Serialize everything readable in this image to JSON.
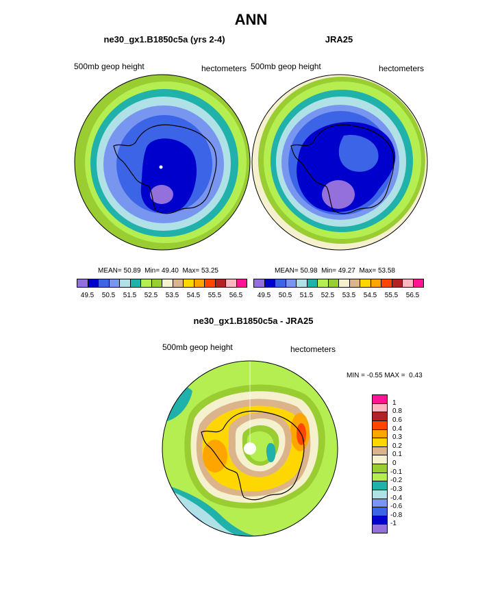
{
  "page_title": "ANN",
  "colors": {
    "levels": [
      "#9370db",
      "#0000cd",
      "#3c64e6",
      "#7896f0",
      "#afe1e6",
      "#20b2aa",
      "#b4ee50",
      "#9acd32",
      "#f5f0cd",
      "#dcb48c",
      "#ffd700",
      "#ffa500",
      "#ff4500",
      "#b22222",
      "#ffb6c1",
      "#ff1493"
    ],
    "diff_levels": [
      "#9370db",
      "#0000cd",
      "#3c64e6",
      "#7896f0",
      "#afe1e6",
      "#20b2aa",
      "#b4ee50",
      "#9acd32",
      "#f5f0cd",
      "#dcb48c",
      "#ffd700",
      "#ffa500",
      "#ff4500",
      "#b22222",
      "#ffb6c1",
      "#ff1493"
    ]
  },
  "chart_data": [
    {
      "type": "heatmap",
      "projection": "polar-south",
      "title": "ne30_gx1.B1850c5a (yrs 2-4)",
      "left_label": "500mb geop height",
      "right_label": "hectometers",
      "stats": {
        "mean_label": "MEAN=",
        "mean": "50.89",
        "min_label": "Min=",
        "min": "49.40",
        "max_label": "Max=",
        "max": "53.25"
      },
      "colorbar_ticks": [
        "49.5",
        "50.5",
        "51.5",
        "52.5",
        "53.5",
        "54.5",
        "55.5",
        "56.5"
      ],
      "rings": [
        {
          "value": 53.25,
          "color_index": 6
        },
        {
          "value": 52.75,
          "color_index": 7
        },
        {
          "value": 52.25,
          "color_index": 5
        },
        {
          "value": 51.75,
          "color_index": 4
        },
        {
          "value": 51.25,
          "color_index": 3
        },
        {
          "value": 50.75,
          "color_index": 2
        },
        {
          "value": 50.25,
          "color_index": 1
        },
        {
          "value": 49.6,
          "color_index": 0
        }
      ]
    },
    {
      "type": "heatmap",
      "projection": "polar-south",
      "title": "JRA25",
      "left_label": "500mb geop height",
      "right_label": "hectometers",
      "stats": {
        "mean_label": "MEAN=",
        "mean": "50.98",
        "min_label": "Min=",
        "min": "49.27",
        "max_label": "Max=",
        "max": "53.58"
      },
      "colorbar_ticks": [
        "49.5",
        "50.5",
        "51.5",
        "52.5",
        "53.5",
        "54.5",
        "55.5",
        "56.5"
      ],
      "rings": [
        {
          "value": 53.58,
          "color_index": 8
        },
        {
          "value": 53.25,
          "color_index": 6
        },
        {
          "value": 52.75,
          "color_index": 7
        },
        {
          "value": 52.25,
          "color_index": 5
        },
        {
          "value": 51.75,
          "color_index": 4
        },
        {
          "value": 51.25,
          "color_index": 3
        },
        {
          "value": 50.75,
          "color_index": 2
        },
        {
          "value": 50.25,
          "color_index": 1
        },
        {
          "value": 49.5,
          "color_index": 0
        }
      ]
    },
    {
      "type": "heatmap",
      "projection": "polar-south",
      "title": "ne30_gx1.B1850c5a - JRA25",
      "left_label": "500mb geop height",
      "right_label": "hectometers",
      "stats": {
        "min_label": "MIN =",
        "min": "-0.55",
        "max_label": "MAX =",
        "max": "0.43"
      },
      "colorbar_ticks": [
        "1",
        "0.8",
        "0.6",
        "0.4",
        "0.3",
        "0.2",
        "0.1",
        "0",
        "-0.1",
        "-0.2",
        "-0.3",
        "-0.4",
        "-0.6",
        "-0.8",
        "-1"
      ],
      "rings": [
        {
          "value": 0.0,
          "color_index": 7
        },
        {
          "value": -0.05,
          "color_index": 6
        },
        {
          "value": 0.05,
          "color_index": 8
        },
        {
          "value": 0.1,
          "color_index": 9
        },
        {
          "value": 0.2,
          "color_index": 10
        },
        {
          "value": 0.3,
          "color_index": 11
        },
        {
          "value": -0.1,
          "color_index": 6
        },
        {
          "value": -0.2,
          "color_index": 5
        }
      ]
    }
  ]
}
